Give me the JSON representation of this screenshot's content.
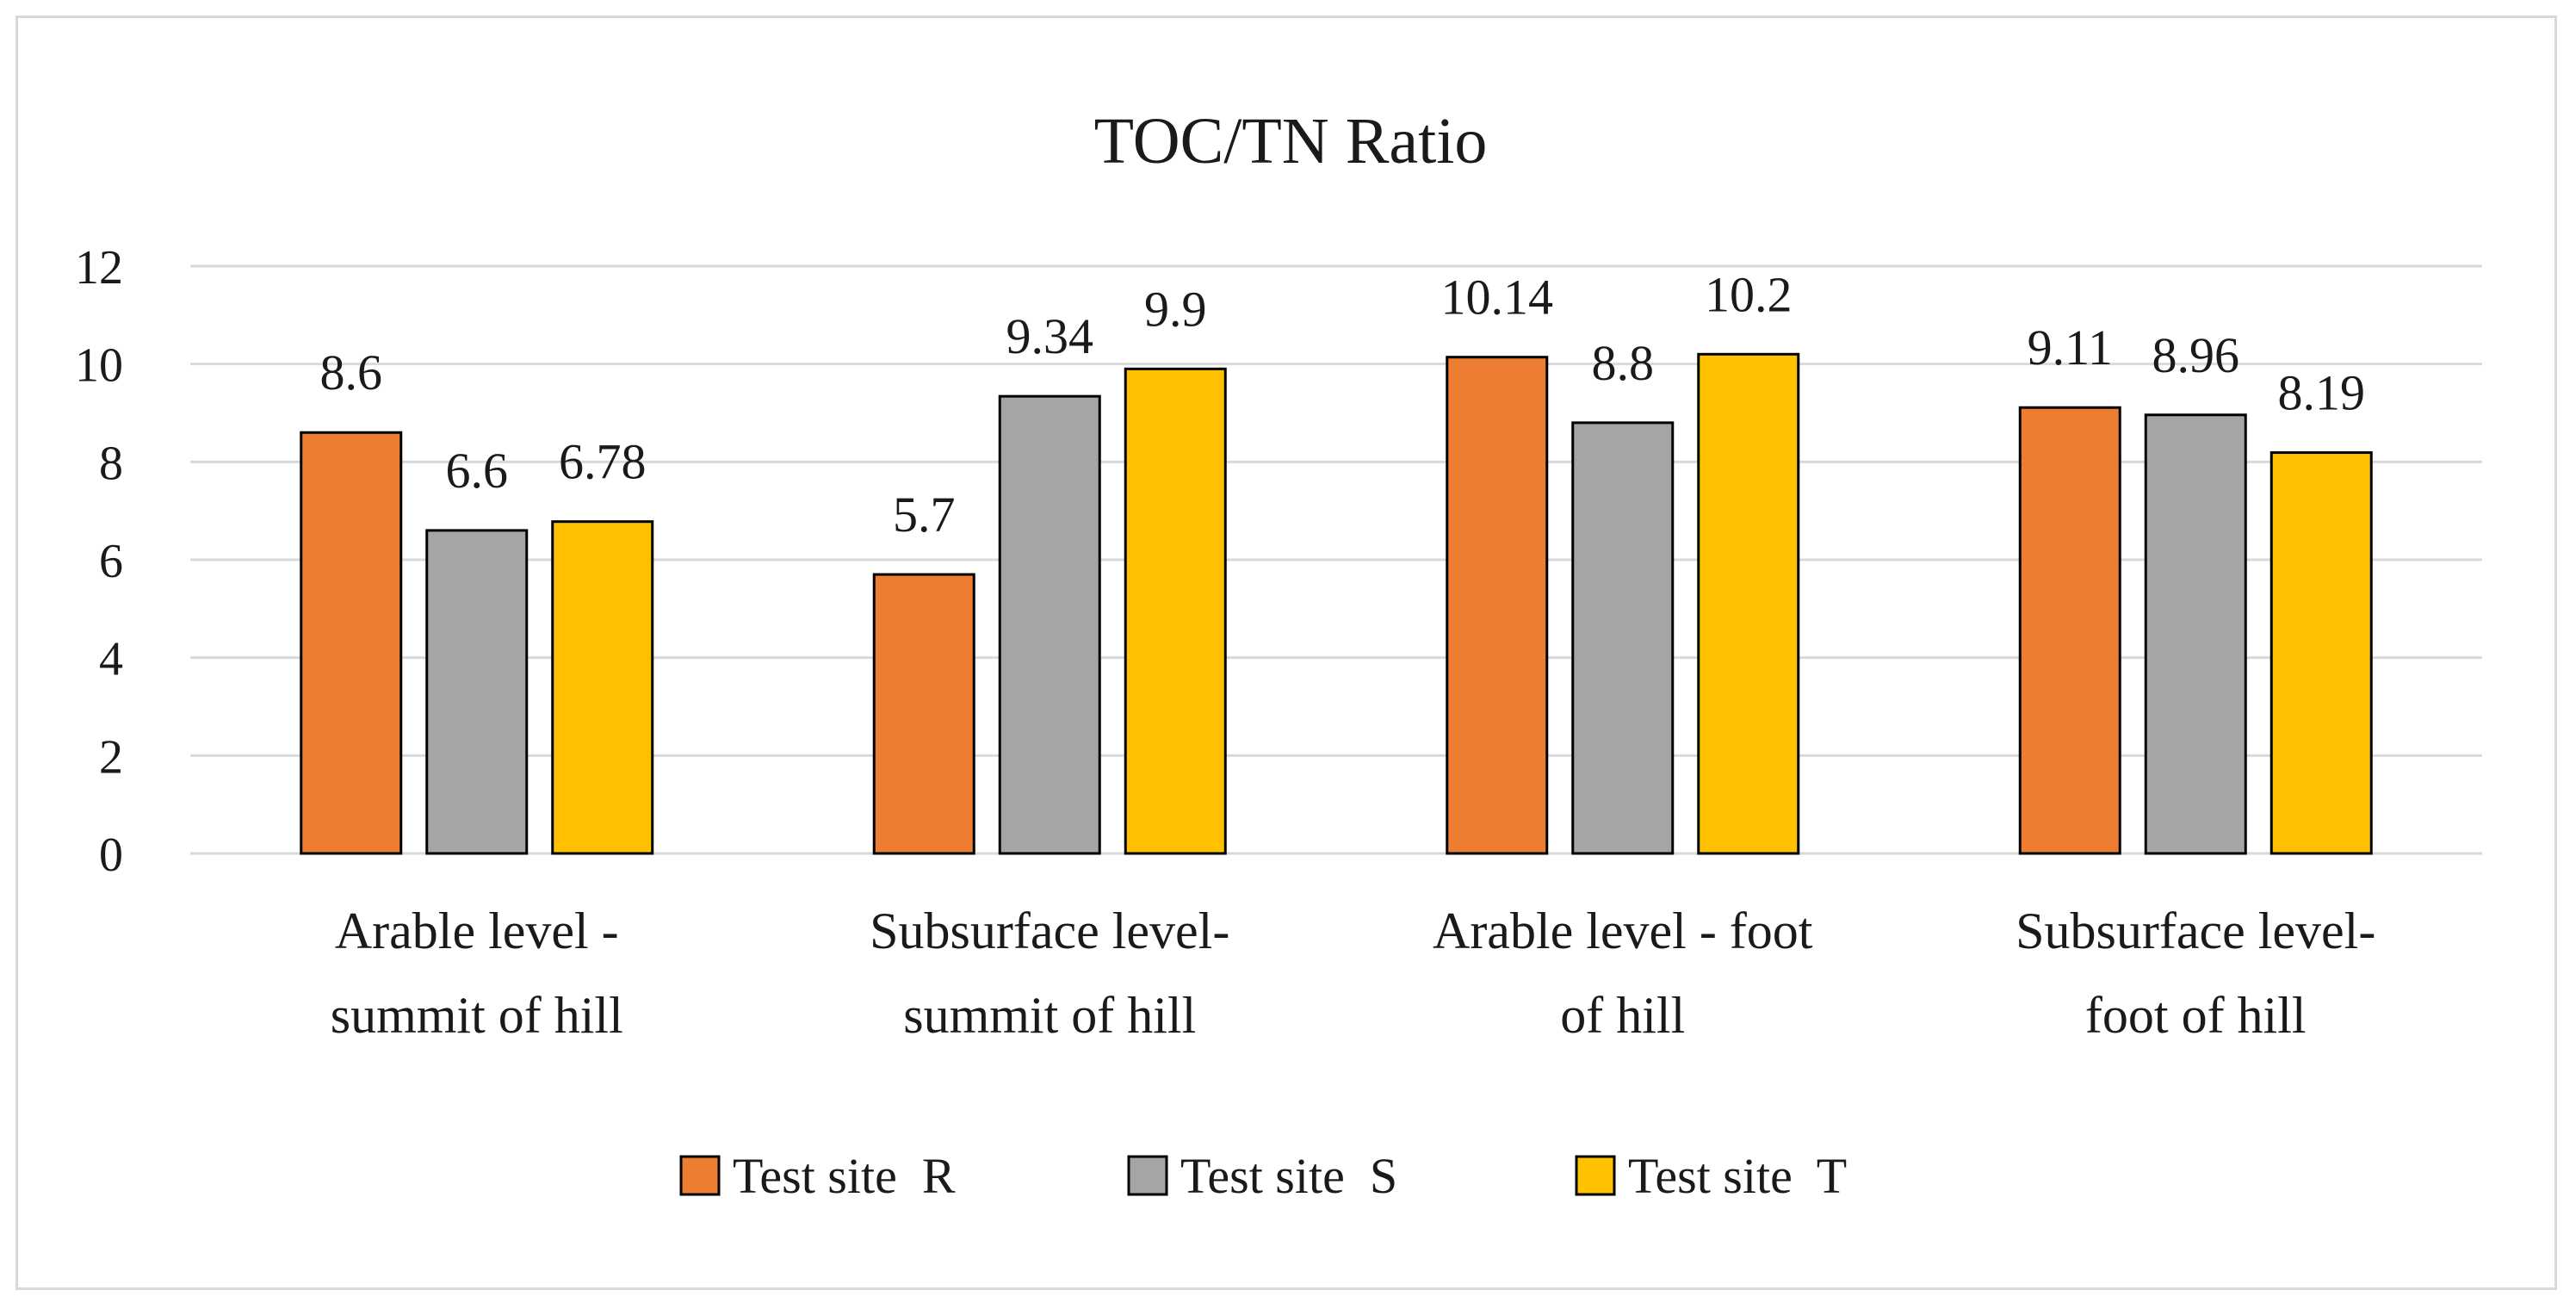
{
  "chart_data": {
    "type": "bar",
    "title": "TOC/TN Ratio",
    "xlabel": "",
    "ylabel": "",
    "ylim": [
      0,
      12
    ],
    "yticks": [
      "0",
      "2",
      "4",
      "6",
      "8",
      "10",
      "12"
    ],
    "grid": true,
    "legend_position": "bottom",
    "categories": [
      [
        "Arable level -",
        "summit of hill"
      ],
      [
        "Subsurface level-",
        "summit of hill"
      ],
      [
        "Arable level - foot",
        "of hill"
      ],
      [
        "Subsurface level-",
        "foot of hill"
      ]
    ],
    "series": [
      {
        "name": "Test site  R",
        "color": "#ed7d31",
        "values": [
          8.6,
          5.7,
          10.14,
          9.11
        ],
        "labels": [
          "8.6",
          "5.7",
          "10.14",
          "9.11"
        ]
      },
      {
        "name": "Test site  S",
        "color": "#a5a5a5",
        "values": [
          6.6,
          9.34,
          8.8,
          8.96
        ],
        "labels": [
          "6.6",
          "9.34",
          "8.8",
          "8.96"
        ]
      },
      {
        "name": "Test site  T",
        "color": "#ffc000",
        "values": [
          6.78,
          9.9,
          10.2,
          8.19
        ],
        "labels": [
          "6.78",
          "9.9",
          "10.2",
          "8.19"
        ]
      }
    ]
  }
}
